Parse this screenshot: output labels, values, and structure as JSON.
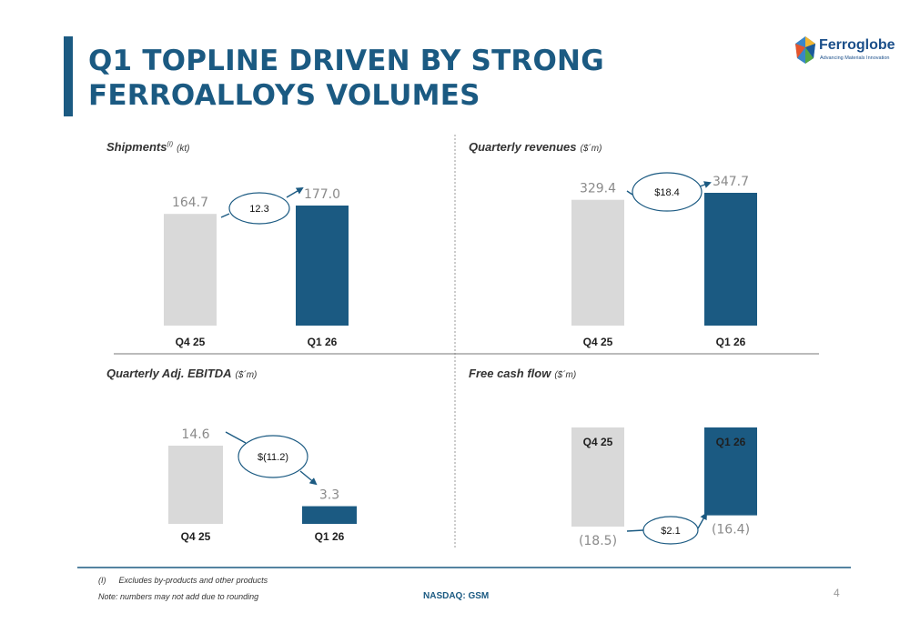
{
  "title": "Q1 TOPLINE DRIVEN BY STRONG FERROALLOYS VOLUMES",
  "logo": {
    "name": "Ferroglobe",
    "tagline": "Advancing Materials Innovation"
  },
  "colors": {
    "prior": "#d9d9d9",
    "current": "#1b5a82",
    "title": "#1b5a82"
  },
  "chart_data": [
    {
      "type": "bar",
      "title": "Shipments",
      "title_sup": "(I)",
      "unit": "(kt)",
      "categories": [
        "Q4 25",
        "Q1 26"
      ],
      "values": [
        164.7,
        177.0
      ],
      "labels": [
        "164.7",
        "177.0"
      ],
      "change_label": "12.3",
      "ylim": [
        0,
        177.0
      ]
    },
    {
      "type": "bar",
      "title": "Quarterly revenues",
      "unit": "($´m)",
      "categories": [
        "Q4 25",
        "Q1 26"
      ],
      "values": [
        329.4,
        347.7
      ],
      "labels": [
        "329.4",
        "347.7"
      ],
      "change_label": "$18.4",
      "ylim": [
        0,
        347.7
      ]
    },
    {
      "type": "bar",
      "title": "Quarterly Adj. EBITDA",
      "unit": "($´m)",
      "categories": [
        "Q4 25",
        "Q1 26"
      ],
      "values": [
        14.6,
        3.3
      ],
      "labels": [
        "14.6",
        "3.3"
      ],
      "change_label": "$(11.2)",
      "ylim": [
        0,
        14.6
      ]
    },
    {
      "type": "bar",
      "title": "Free cash flow",
      "unit": "($´m)",
      "categories": [
        "Q4 25",
        "Q1 26"
      ],
      "values": [
        -18.5,
        -16.4
      ],
      "labels": [
        "(18.5)",
        "(16.4)"
      ],
      "change_label": "$2.1",
      "ylim": [
        -18.5,
        0
      ]
    }
  ],
  "footnotes": {
    "note1_marker": "(I)",
    "note1": "Excludes by-products and other products",
    "note2": "Note: numbers may not add due to rounding"
  },
  "ticker": "NASDAQ: GSM",
  "page_number": "4"
}
